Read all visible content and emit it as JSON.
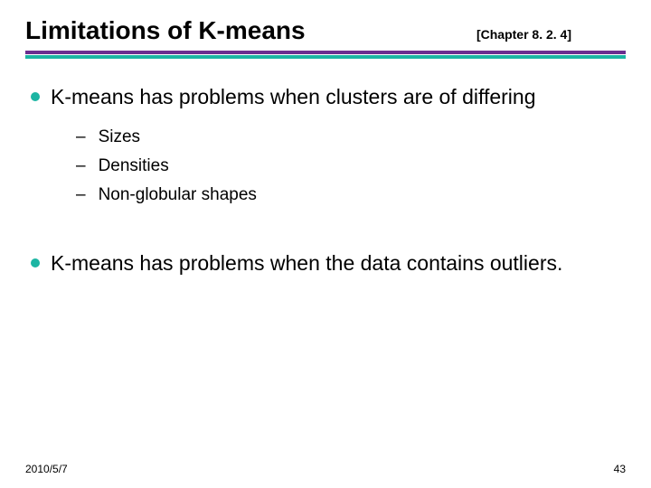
{
  "title": "Limitations of K-means",
  "chapter": "[Chapter 8. 2. 4]",
  "rule": {
    "color_top": "#6a2e8f",
    "color_bottom": "#1cb5a3"
  },
  "bullet_color": "#1cb5a3",
  "points": [
    {
      "text": "K-means has problems when clusters are of differing",
      "sub": [
        "Sizes",
        "Densities",
        "Non-globular shapes"
      ]
    },
    {
      "text": "K-means has problems when the data contains outliers.",
      "sub": []
    }
  ],
  "footer": {
    "date": "2010/5/7",
    "page": "43"
  }
}
